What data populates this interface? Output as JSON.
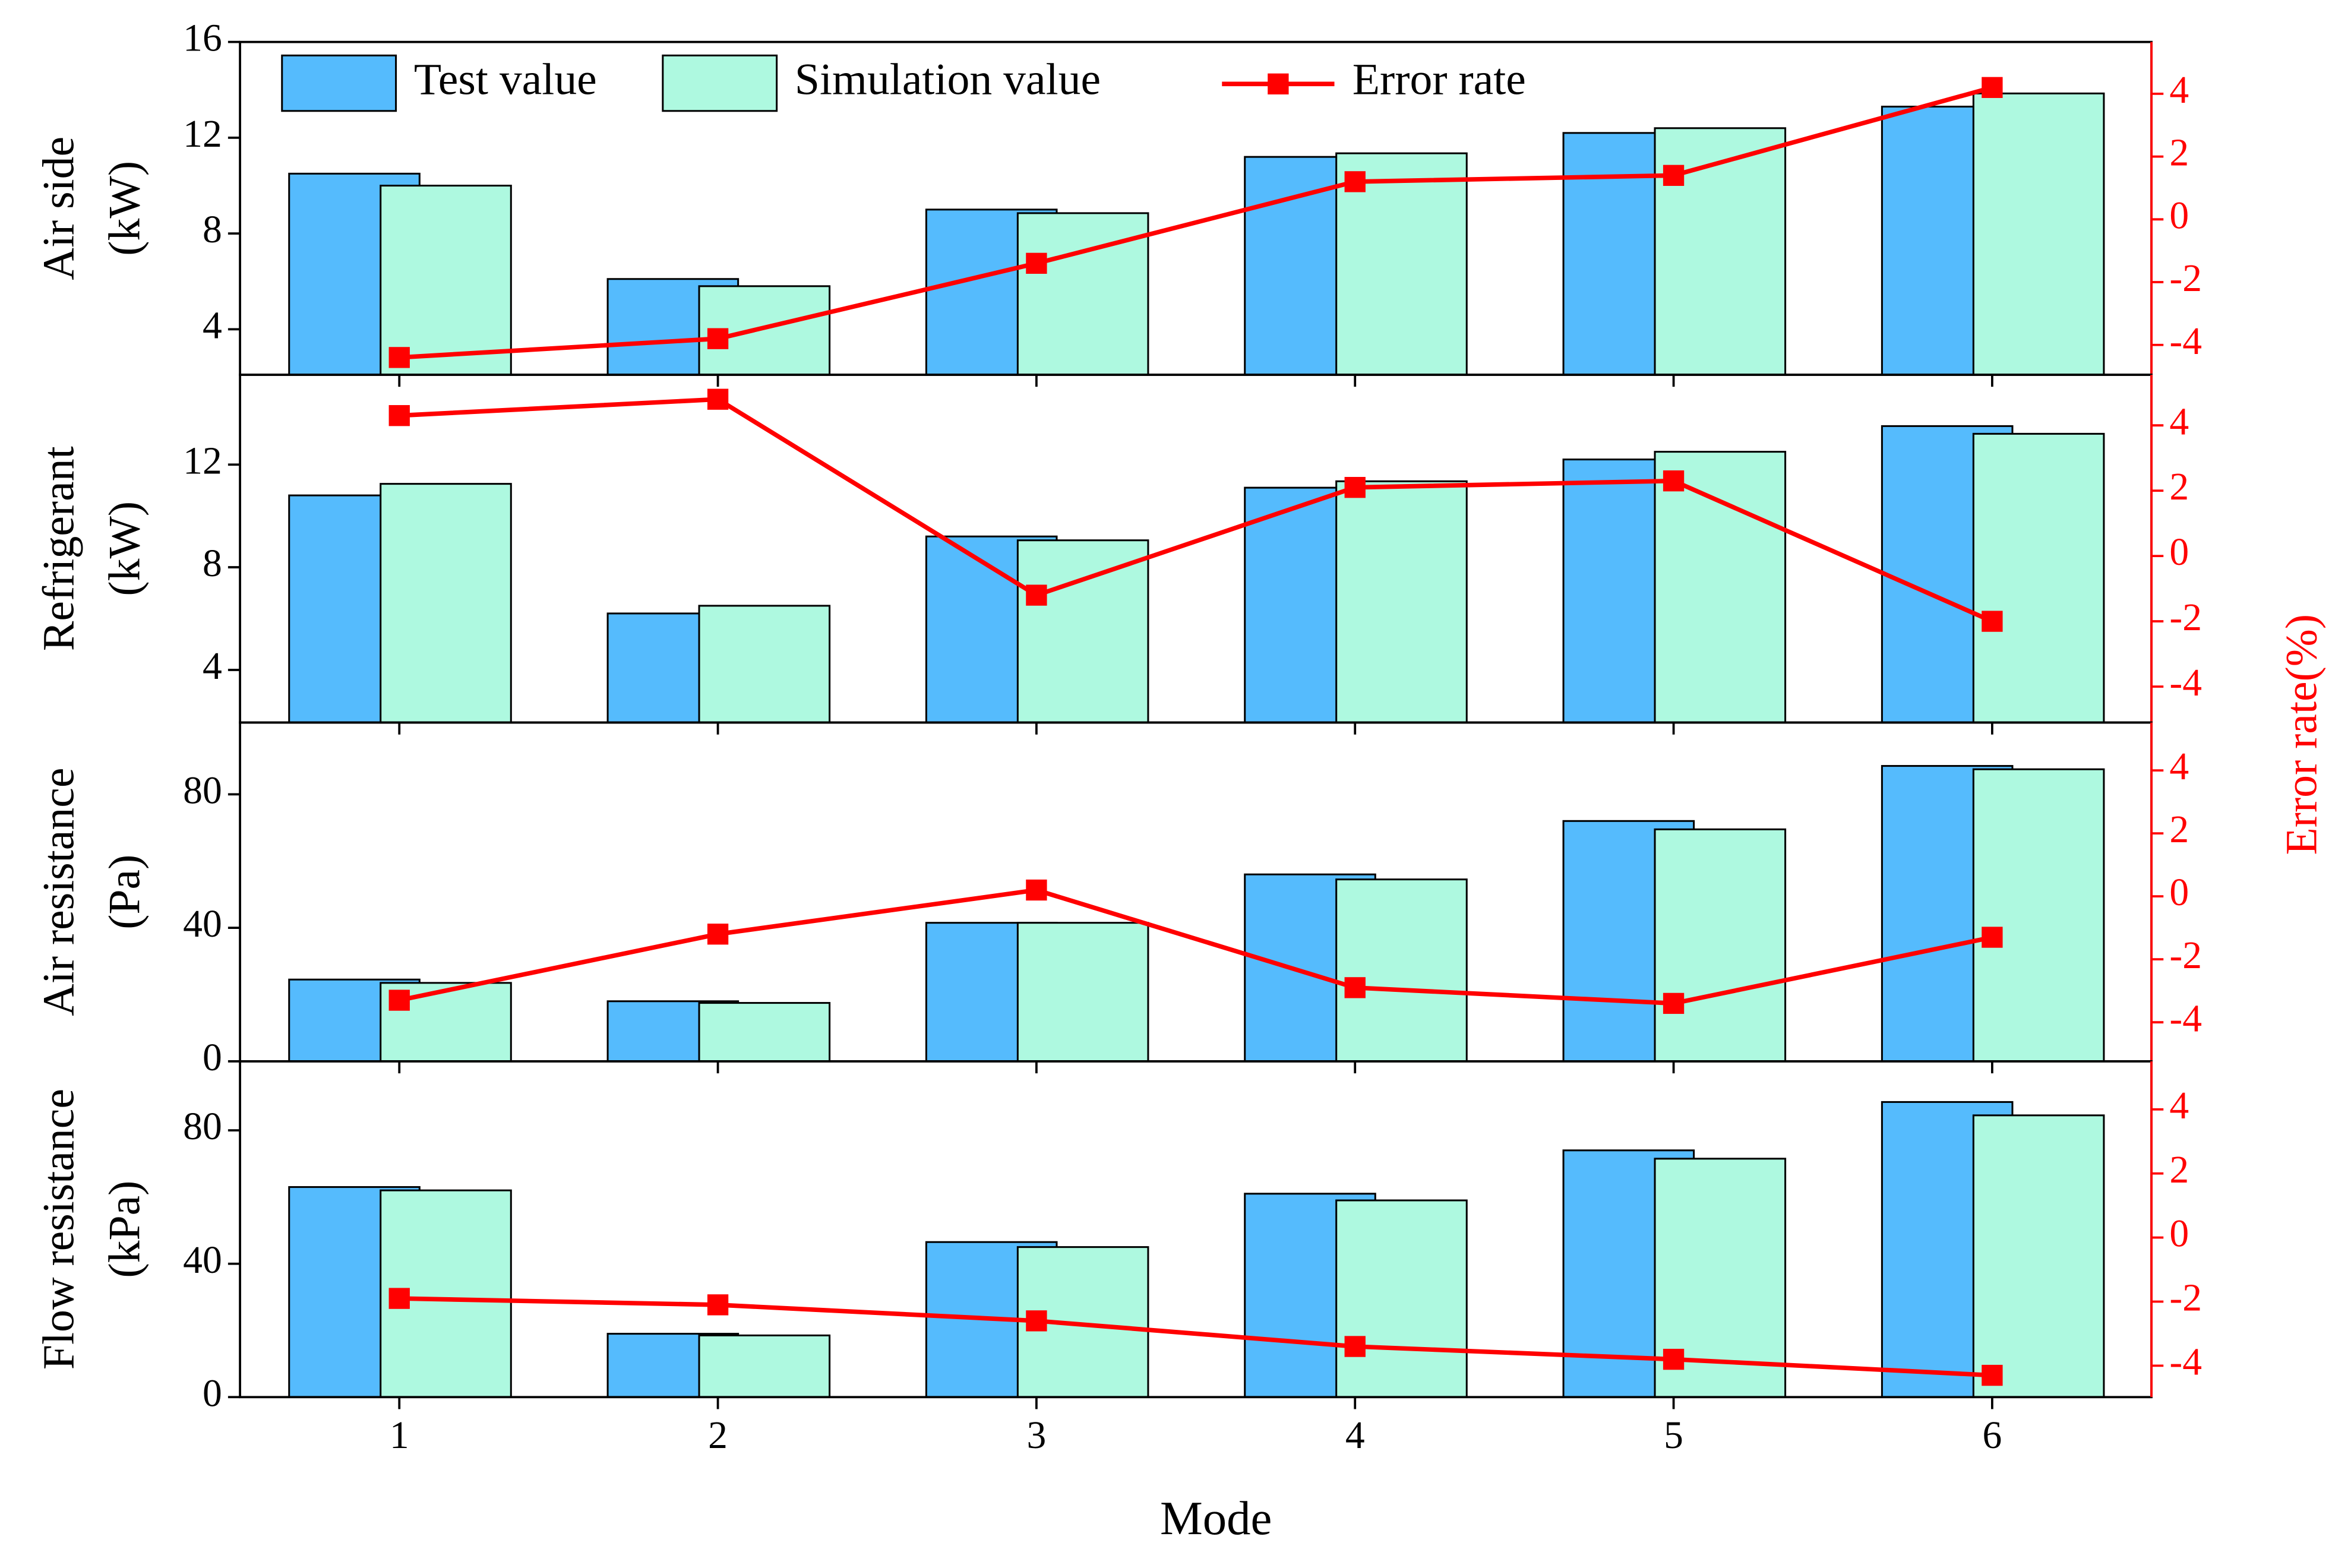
{
  "chart_data": [
    {
      "type": "bar",
      "ylabel": [
        "Air side",
        "(kW)"
      ],
      "xlim": [
        0.5,
        6.5
      ],
      "ylim": [
        2.1,
        16
      ],
      "yticks": [
        4,
        8,
        12,
        16
      ],
      "y2lim": [
        -4.95,
        5.65
      ],
      "y2ticks": [
        -4,
        -2,
        0,
        2,
        4
      ],
      "series": [
        {
          "name": "Test value",
          "color": "#55bbfd",
          "values": [
            10.5,
            6.1,
            9.0,
            11.2,
            12.2,
            13.3
          ]
        },
        {
          "name": "Simulation value",
          "color": "#aef9e0",
          "values": [
            10.0,
            5.8,
            8.85,
            11.35,
            12.4,
            13.85
          ]
        },
        {
          "name": "Error rate",
          "color": "#ff0000",
          "axis": "y2",
          "type": "line",
          "values": [
            -4.4,
            -3.8,
            -1.4,
            1.2,
            1.4,
            4.2
          ]
        }
      ]
    },
    {
      "type": "bar",
      "ylabel": [
        "Refrigerant",
        "(kW)"
      ],
      "y2label": "Error rate(%)",
      "xlim": [
        0.5,
        6.5
      ],
      "ylim": [
        1.95,
        15.5
      ],
      "yticks": [
        4,
        8,
        12
      ],
      "y2lim": [
        -5.1,
        5.55
      ],
      "y2ticks": [
        -4,
        -2,
        0,
        2,
        4
      ],
      "series": [
        {
          "color": "#55bbfd",
          "values": [
            10.8,
            6.2,
            9.2,
            11.1,
            12.2,
            13.5
          ]
        },
        {
          "color": "#aef9e0",
          "values": [
            11.25,
            6.5,
            9.05,
            11.35,
            12.5,
            13.2
          ]
        },
        {
          "color": "#ff0000",
          "axis": "y2",
          "type": "line",
          "values": [
            4.3,
            4.8,
            -1.2,
            2.1,
            2.3,
            -2.0
          ]
        }
      ]
    },
    {
      "type": "bar",
      "ylabel": [
        "Air resistance",
        "(Pa)"
      ],
      "xlim": [
        0.5,
        6.5
      ],
      "ylim": [
        0,
        101.5
      ],
      "yticks": [
        0,
        40,
        80
      ],
      "y2lim": [
        -5.24,
        5.52
      ],
      "y2ticks": [
        -4,
        -2,
        0,
        2,
        4
      ],
      "series": [
        {
          "color": "#55bbfd",
          "values": [
            24.5,
            18,
            41.5,
            56,
            72,
            88.5
          ]
        },
        {
          "color": "#aef9e0",
          "values": [
            23.5,
            17.5,
            41.5,
            54.5,
            69.5,
            87.5
          ]
        },
        {
          "color": "#ff0000",
          "axis": "y2",
          "type": "line",
          "values": [
            -3.3,
            -1.2,
            0.2,
            -2.9,
            -3.4,
            -1.3
          ]
        }
      ]
    },
    {
      "type": "bar",
      "ylabel": [
        "Flow resistance",
        "(kPa)"
      ],
      "xlabel": "Mode",
      "categories": [
        1,
        2,
        3,
        4,
        5,
        6
      ],
      "xlim": [
        0.5,
        6.5
      ],
      "ylim": [
        0,
        100.7
      ],
      "yticks": [
        0,
        40,
        80
      ],
      "y2lim": [
        -4.98,
        5.5
      ],
      "y2ticks": [
        -4,
        -2,
        0,
        2,
        4
      ],
      "series": [
        {
          "color": "#55bbfd",
          "values": [
            63,
            19,
            46.5,
            61,
            74,
            88.5
          ]
        },
        {
          "color": "#aef9e0",
          "values": [
            62,
            18.5,
            45,
            59,
            71.5,
            84.5
          ]
        },
        {
          "color": "#ff0000",
          "axis": "y2",
          "type": "line",
          "values": [
            -1.9,
            -2.1,
            -2.6,
            -3.4,
            -3.8,
            -4.3
          ]
        }
      ]
    }
  ]
}
